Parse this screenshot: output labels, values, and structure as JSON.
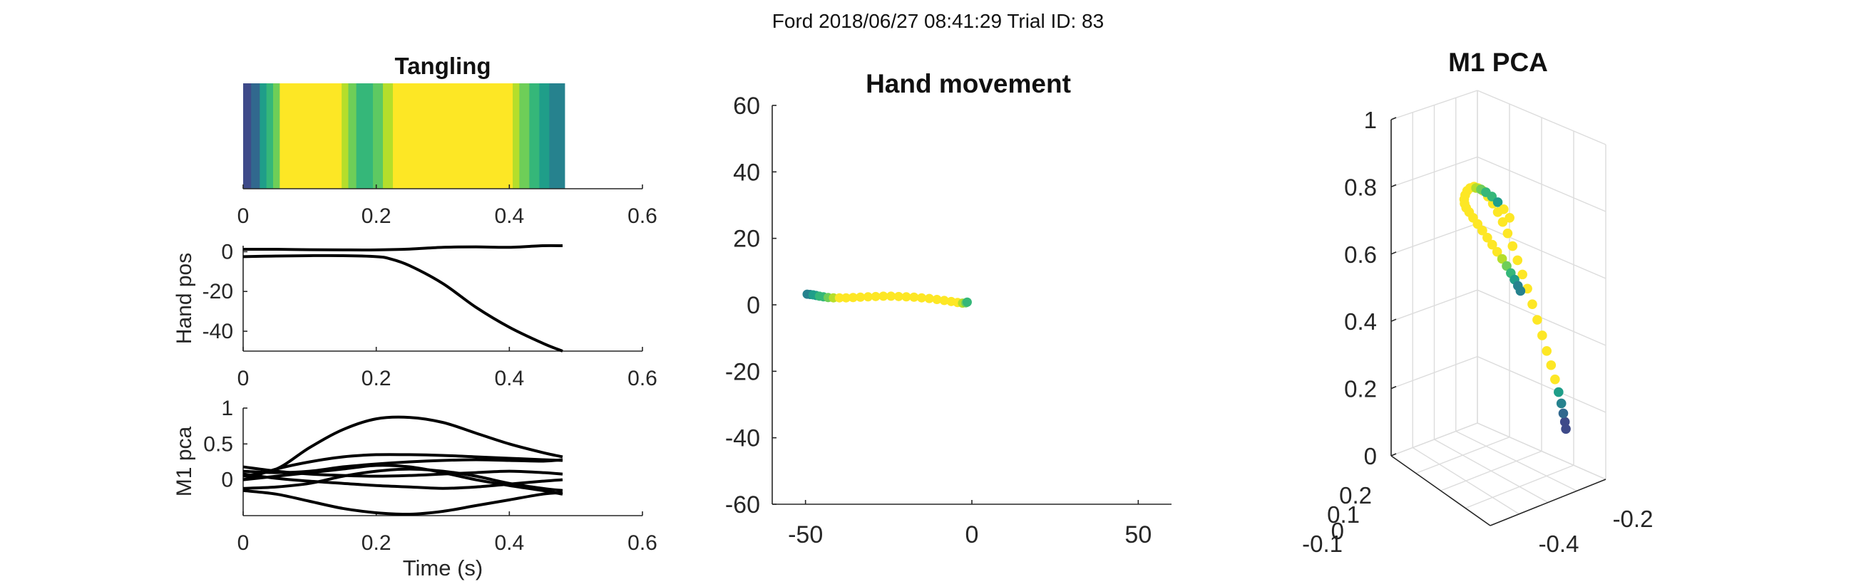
{
  "figure": {
    "suptitle": "Ford 2018/06/27 08:41:29 Trial ID: 83"
  },
  "colors": {
    "text": "#262626",
    "line": "#000000",
    "grid": "#dcdcdc",
    "colormap": [
      "#3e4a89",
      "#31688e",
      "#26828e",
      "#1f9e89",
      "#35b779",
      "#6ece58",
      "#b5de2b",
      "#fde725"
    ]
  },
  "chart_data": [
    {
      "id": "tangling",
      "type": "heatmap",
      "title": "Tangling",
      "xlim": [
        0,
        0.6
      ],
      "xticks": [
        0,
        0.2,
        0.4,
        0.6
      ],
      "xtick_labels": [
        "0",
        "0.2",
        "0.4",
        "0.6"
      ],
      "bands": [
        {
          "x0": 0.0,
          "x1": 0.012,
          "color": "#3e4a89"
        },
        {
          "x0": 0.012,
          "x1": 0.025,
          "color": "#31688e"
        },
        {
          "x0": 0.025,
          "x1": 0.035,
          "color": "#1f9e89"
        },
        {
          "x0": 0.035,
          "x1": 0.045,
          "color": "#35b779"
        },
        {
          "x0": 0.045,
          "x1": 0.055,
          "color": "#6ece58"
        },
        {
          "x0": 0.055,
          "x1": 0.148,
          "color": "#fde725"
        },
        {
          "x0": 0.148,
          "x1": 0.158,
          "color": "#b5de2b"
        },
        {
          "x0": 0.158,
          "x1": 0.17,
          "color": "#6ece58"
        },
        {
          "x0": 0.17,
          "x1": 0.195,
          "color": "#35b779"
        },
        {
          "x0": 0.195,
          "x1": 0.21,
          "color": "#5ec962"
        },
        {
          "x0": 0.21,
          "x1": 0.225,
          "color": "#b5de2b"
        },
        {
          "x0": 0.225,
          "x1": 0.405,
          "color": "#fde725"
        },
        {
          "x0": 0.405,
          "x1": 0.415,
          "color": "#b5de2b"
        },
        {
          "x0": 0.415,
          "x1": 0.43,
          "color": "#6ece58"
        },
        {
          "x0": 0.43,
          "x1": 0.445,
          "color": "#35b779"
        },
        {
          "x0": 0.445,
          "x1": 0.46,
          "color": "#1f9e89"
        },
        {
          "x0": 0.46,
          "x1": 0.483,
          "color": "#26828e"
        }
      ]
    },
    {
      "id": "hand_pos",
      "type": "line",
      "ylabel": "Hand pos",
      "xlim": [
        0,
        0.6
      ],
      "ylim": [
        -50,
        3
      ],
      "xticks": [
        0,
        0.2,
        0.4,
        0.6
      ],
      "xtick_labels": [
        "0",
        "0.2",
        "0.4",
        "0.6"
      ],
      "yticks": [
        0,
        -20,
        -40
      ],
      "ytick_labels": [
        "0",
        "-20",
        "-40"
      ],
      "series": [
        {
          "x": [
            0,
            0.05,
            0.1,
            0.15,
            0.2,
            0.25,
            0.3,
            0.35,
            0.4,
            0.45,
            0.48
          ],
          "y": [
            1.2,
            1.2,
            1.0,
            0.9,
            0.9,
            1.3,
            2.2,
            2.4,
            2.2,
            3.0,
            3.0
          ]
        },
        {
          "x": [
            0,
            0.05,
            0.1,
            0.15,
            0.2,
            0.22,
            0.25,
            0.3,
            0.35,
            0.4,
            0.45,
            0.48
          ],
          "y": [
            -2.5,
            -2.2,
            -2.0,
            -2.0,
            -2.5,
            -3.5,
            -7,
            -16,
            -28,
            -38,
            -46,
            -50
          ]
        }
      ]
    },
    {
      "id": "m1_pca",
      "type": "line",
      "xlabel": "Time (s)",
      "ylabel": "M1 pca",
      "xlim": [
        0,
        0.6
      ],
      "ylim": [
        -0.5,
        1
      ],
      "xticks": [
        0,
        0.2,
        0.4,
        0.6
      ],
      "xtick_labels": [
        "0",
        "0.2",
        "0.4",
        "0.6"
      ],
      "yticks": [
        1,
        0.5,
        0
      ],
      "ytick_labels": [
        "1",
        "0.5",
        "0"
      ],
      "series": [
        {
          "x": [
            0,
            0.05,
            0.1,
            0.15,
            0.2,
            0.25,
            0.3,
            0.35,
            0.4,
            0.45,
            0.48
          ],
          "y": [
            0.05,
            0.15,
            0.45,
            0.7,
            0.85,
            0.87,
            0.8,
            0.65,
            0.5,
            0.38,
            0.32
          ]
        },
        {
          "x": [
            0,
            0.05,
            0.1,
            0.15,
            0.2,
            0.25,
            0.3,
            0.35,
            0.4,
            0.45,
            0.48
          ],
          "y": [
            -0.15,
            -0.2,
            -0.3,
            -0.4,
            -0.46,
            -0.48,
            -0.44,
            -0.36,
            -0.28,
            -0.2,
            -0.18
          ]
        },
        {
          "x": [
            0,
            0.05,
            0.1,
            0.15,
            0.2,
            0.25,
            0.3,
            0.35,
            0.4,
            0.45,
            0.48
          ],
          "y": [
            0.0,
            0.15,
            0.25,
            0.32,
            0.35,
            0.35,
            0.34,
            0.32,
            0.3,
            0.28,
            0.27
          ]
        },
        {
          "x": [
            0,
            0.05,
            0.1,
            0.15,
            0.2,
            0.25,
            0.3,
            0.35,
            0.4,
            0.45,
            0.48
          ],
          "y": [
            0.12,
            0.1,
            0.12,
            0.18,
            0.22,
            0.25,
            0.27,
            0.28,
            0.27,
            0.26,
            0.28
          ]
        },
        {
          "x": [
            0,
            0.05,
            0.1,
            0.15,
            0.2,
            0.25,
            0.3,
            0.35,
            0.4,
            0.45,
            0.48
          ],
          "y": [
            0.18,
            0.12,
            0.08,
            0.06,
            0.05,
            0.06,
            0.08,
            0.1,
            0.12,
            0.1,
            0.08
          ]
        },
        {
          "x": [
            0,
            0.05,
            0.1,
            0.15,
            0.2,
            0.25,
            0.3,
            0.35,
            0.4,
            0.45,
            0.48
          ],
          "y": [
            0.08,
            0.02,
            -0.02,
            -0.05,
            -0.08,
            -0.1,
            -0.12,
            -0.1,
            -0.06,
            -0.02,
            0.0
          ]
        },
        {
          "x": [
            0,
            0.05,
            0.1,
            0.15,
            0.2,
            0.25,
            0.3,
            0.35,
            0.4,
            0.45,
            0.48
          ],
          "y": [
            -0.12,
            -0.1,
            -0.05,
            0.05,
            0.12,
            0.15,
            0.12,
            0.05,
            -0.05,
            -0.12,
            -0.15
          ]
        },
        {
          "x": [
            0,
            0.05,
            0.1,
            0.15,
            0.2,
            0.25,
            0.3,
            0.35,
            0.4,
            0.45,
            0.48
          ],
          "y": [
            0.0,
            0.05,
            0.1,
            0.15,
            0.2,
            0.18,
            0.1,
            0.0,
            -0.08,
            -0.15,
            -0.2
          ]
        }
      ]
    },
    {
      "id": "hand_movement",
      "type": "scatter",
      "title": "Hand movement",
      "xlim": [
        -60,
        60
      ],
      "ylim": [
        -60,
        60
      ],
      "xticks": [
        -50,
        0,
        50
      ],
      "xtick_labels": [
        "-50",
        "0",
        "50"
      ],
      "yticks": [
        60,
        40,
        20,
        0,
        -20,
        -40,
        -60
      ],
      "ytick_labels": [
        "60",
        "40",
        "20",
        "0",
        "-20",
        "-40",
        "-60"
      ],
      "points": [
        {
          "x": -49.5,
          "y": 3.2,
          "c": "#26828e"
        },
        {
          "x": -48.6,
          "y": 3.1,
          "c": "#26828e"
        },
        {
          "x": -47.7,
          "y": 3.0,
          "c": "#1f9e89"
        },
        {
          "x": -46.8,
          "y": 2.8,
          "c": "#1f9e89"
        },
        {
          "x": -45.8,
          "y": 2.6,
          "c": "#35b779"
        },
        {
          "x": -44.6,
          "y": 2.4,
          "c": "#35b779"
        },
        {
          "x": -43.2,
          "y": 2.2,
          "c": "#6ece58"
        },
        {
          "x": -41.6,
          "y": 2.1,
          "c": "#b5de2b"
        },
        {
          "x": -39.8,
          "y": 2.1,
          "c": "#fde725"
        },
        {
          "x": -37.8,
          "y": 2.1,
          "c": "#fde725"
        },
        {
          "x": -35.7,
          "y": 2.2,
          "c": "#fde725"
        },
        {
          "x": -33.5,
          "y": 2.3,
          "c": "#fde725"
        },
        {
          "x": -31.2,
          "y": 2.4,
          "c": "#fde725"
        },
        {
          "x": -28.9,
          "y": 2.5,
          "c": "#fde725"
        },
        {
          "x": -26.6,
          "y": 2.6,
          "c": "#fde725"
        },
        {
          "x": -24.3,
          "y": 2.6,
          "c": "#fde725"
        },
        {
          "x": -22.0,
          "y": 2.5,
          "c": "#fde725"
        },
        {
          "x": -19.7,
          "y": 2.4,
          "c": "#fde725"
        },
        {
          "x": -17.4,
          "y": 2.3,
          "c": "#fde725"
        },
        {
          "x": -15.1,
          "y": 2.1,
          "c": "#fde725"
        },
        {
          "x": -12.8,
          "y": 1.9,
          "c": "#fde725"
        },
        {
          "x": -10.5,
          "y": 1.6,
          "c": "#fde725"
        },
        {
          "x": -8.3,
          "y": 1.3,
          "c": "#fde725"
        },
        {
          "x": -6.2,
          "y": 1.0,
          "c": "#fde725"
        },
        {
          "x": -4.3,
          "y": 0.7,
          "c": "#fde725"
        },
        {
          "x": -2.8,
          "y": 0.5,
          "c": "#b5de2b"
        },
        {
          "x": -1.8,
          "y": 0.6,
          "c": "#6ece58"
        },
        {
          "x": -1.4,
          "y": 0.8,
          "c": "#35b779"
        }
      ]
    },
    {
      "id": "m1_pca_3d",
      "type": "scatter",
      "title": "M1 PCA",
      "zticks": [
        1,
        0.8,
        0.6,
        0.4,
        0.2,
        0
      ],
      "ztick_labels": [
        "1",
        "0.8",
        "0.6",
        "0.4",
        "0.2",
        "0"
      ],
      "xticks_left": [
        0.2,
        0.1,
        0,
        -0.1
      ],
      "xtick_left_labels": [
        "0.2",
        "0.1",
        "0",
        "-0.1"
      ],
      "xticks_right": [
        -0.2,
        -0.4
      ],
      "xtick_right_labels": [
        "-0.2",
        "-0.4"
      ],
      "points_color_order": "start at bottom (dark blue) rising to top loop (yellow) then descending (green/teal)",
      "points": [
        {
          "u": 0.885,
          "v": 0.145,
          "c": "#3e4a89"
        },
        {
          "u": 0.88,
          "v": 0.17,
          "c": "#3e4a89"
        },
        {
          "u": 0.872,
          "v": 0.2,
          "c": "#31688e"
        },
        {
          "u": 0.862,
          "v": 0.235,
          "c": "#26828e"
        },
        {
          "u": 0.848,
          "v": 0.275,
          "c": "#1f9e89"
        },
        {
          "u": 0.83,
          "v": 0.32,
          "c": "#fde725"
        },
        {
          "u": 0.81,
          "v": 0.37,
          "c": "#fde725"
        },
        {
          "u": 0.788,
          "v": 0.42,
          "c": "#fde725"
        },
        {
          "u": 0.765,
          "v": 0.475,
          "c": "#fde725"
        },
        {
          "u": 0.74,
          "v": 0.53,
          "c": "#fde725"
        },
        {
          "u": 0.715,
          "v": 0.585,
          "c": "#fde725"
        },
        {
          "u": 0.69,
          "v": 0.64,
          "c": "#fde725"
        },
        {
          "u": 0.665,
          "v": 0.69,
          "c": "#fde725"
        },
        {
          "u": 0.64,
          "v": 0.74,
          "c": "#fde725"
        },
        {
          "u": 0.615,
          "v": 0.79,
          "c": "#fde725"
        },
        {
          "u": 0.59,
          "v": 0.835,
          "c": "#fde725"
        },
        {
          "u": 0.565,
          "v": 0.875,
          "c": "#fde725"
        },
        {
          "u": 0.54,
          "v": 0.91,
          "c": "#fde725"
        },
        {
          "u": 0.515,
          "v": 0.94,
          "c": "#fde725"
        },
        {
          "u": 0.49,
          "v": 0.965,
          "c": "#fde725"
        },
        {
          "u": 0.465,
          "v": 0.985,
          "c": "#fde725"
        },
        {
          "u": 0.44,
          "v": 0.995,
          "c": "#fde725"
        },
        {
          "u": 0.42,
          "v": 1.0,
          "c": "#fde725"
        },
        {
          "u": 0.4,
          "v": 0.995,
          "c": "#fde725"
        },
        {
          "u": 0.385,
          "v": 0.985,
          "c": "#fde725"
        },
        {
          "u": 0.375,
          "v": 0.97,
          "c": "#fde725"
        },
        {
          "u": 0.37,
          "v": 0.955,
          "c": "#fde725"
        },
        {
          "u": 0.372,
          "v": 0.94,
          "c": "#fde725"
        },
        {
          "u": 0.38,
          "v": 0.925,
          "c": "#fde725"
        },
        {
          "u": 0.395,
          "v": 0.91,
          "c": "#fde725"
        },
        {
          "u": 0.415,
          "v": 0.89,
          "c": "#fde725"
        },
        {
          "u": 0.438,
          "v": 0.868,
          "c": "#fde725"
        },
        {
          "u": 0.462,
          "v": 0.845,
          "c": "#fde725"
        },
        {
          "u": 0.487,
          "v": 0.82,
          "c": "#fde725"
        },
        {
          "u": 0.512,
          "v": 0.795,
          "c": "#fde725"
        },
        {
          "u": 0.537,
          "v": 0.77,
          "c": "#fde725"
        },
        {
          "u": 0.562,
          "v": 0.745,
          "c": "#b5de2b"
        },
        {
          "u": 0.585,
          "v": 0.72,
          "c": "#6ece58"
        },
        {
          "u": 0.606,
          "v": 0.695,
          "c": "#35b779"
        },
        {
          "u": 0.625,
          "v": 0.672,
          "c": "#1f9e89"
        },
        {
          "u": 0.642,
          "v": 0.65,
          "c": "#26828e"
        },
        {
          "u": 0.655,
          "v": 0.632,
          "c": "#26828e"
        },
        {
          "u": 0.43,
          "v": 0.995,
          "c": "#b5de2b"
        },
        {
          "u": 0.455,
          "v": 0.99,
          "c": "#6ece58"
        },
        {
          "u": 0.48,
          "v": 0.98,
          "c": "#35b779"
        },
        {
          "u": 0.51,
          "v": 0.965,
          "c": "#35b779"
        },
        {
          "u": 0.54,
          "v": 0.945,
          "c": "#1f9e89"
        },
        {
          "u": 0.57,
          "v": 0.92,
          "c": "#fde725"
        },
        {
          "u": 0.6,
          "v": 0.89,
          "c": "#fde725"
        }
      ]
    }
  ]
}
